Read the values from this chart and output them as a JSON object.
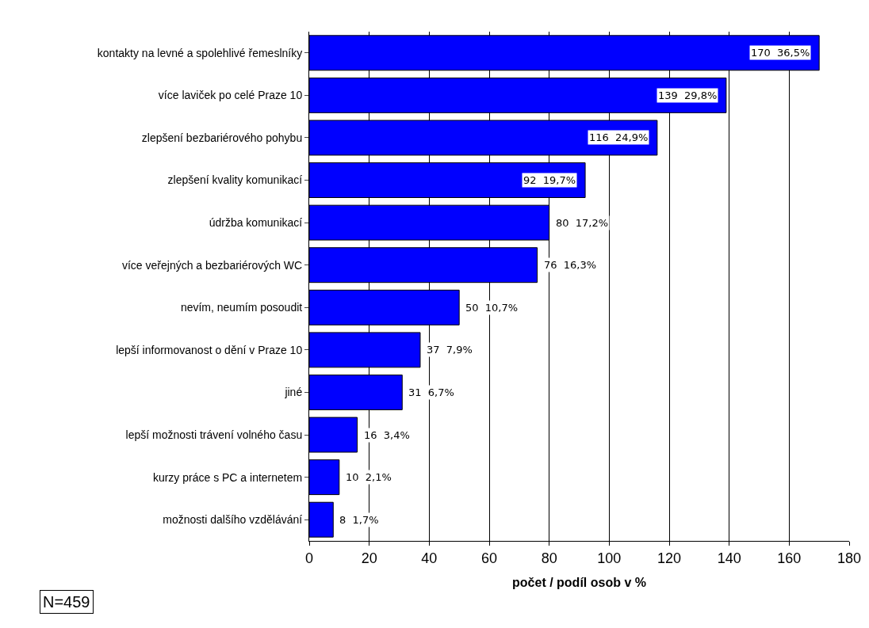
{
  "chart_data": {
    "type": "bar",
    "orientation": "horizontal",
    "categories": [
      "kontakty na levné a spolehlivé řemeslníky",
      "více laviček po celé Praze 10",
      "zlepšení bezbariérového pohybu",
      "zlepšení kvality komunikací",
      "údržba komunikací",
      "více veřejných a bezbariérových WC",
      "nevím, neumím posoudit",
      "lepší informovanost o dění v Praze 10",
      "jiné",
      "lepší možnosti trávení volného času",
      "kurzy práce s PC a internetem",
      "možnosti dalšího vzdělávání"
    ],
    "values": [
      170,
      139,
      116,
      92,
      80,
      76,
      50,
      37,
      31,
      16,
      10,
      8
    ],
    "value_labels": [
      "170  36,5%",
      "139  29,8%",
      "116  24,9%",
      "92  19,7%",
      "80  17,2%",
      "76  16,3%",
      "50  10,7%",
      "37  7,9%",
      "31  6,7%",
      "16  3,4%",
      "10  2,1%",
      "8  1,7%"
    ],
    "color": "#0000ff",
    "xlabel": "počet / podíl osob v %",
    "xlim": [
      0,
      180
    ],
    "xticks": [
      0,
      20,
      40,
      60,
      80,
      100,
      120,
      140,
      160,
      180
    ],
    "grid": "x",
    "annotations": [
      "N=459"
    ]
  }
}
